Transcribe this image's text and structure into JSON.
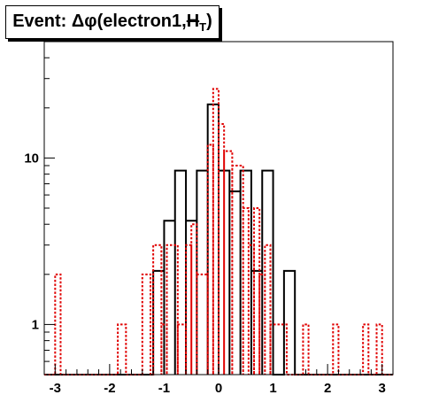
{
  "title": {
    "prefix": "Event: Δφ(electron1,",
    "met_symbol": "H",
    "met_subscript": "T",
    "suffix": ")"
  },
  "chart_data": {
    "type": "histogram",
    "title": "Event: Δφ(electron1,H_T)",
    "xlabel": "",
    "ylabel": "",
    "xlim": [
      -3.2,
      3.2
    ],
    "ylim": [
      0.5,
      50
    ],
    "log_y": true,
    "grid": false,
    "bin_width": 0.2,
    "x_ticks": [
      -3,
      -2,
      -1,
      0,
      1,
      2,
      3
    ],
    "x_tick_labels": [
      "-3",
      "-2",
      "-1",
      "0",
      "1",
      "2",
      "3"
    ],
    "y_ticks": [
      1,
      10
    ],
    "y_tick_labels": [
      "1",
      "10"
    ],
    "series": [
      {
        "style": "solid",
        "color": "#000000",
        "bins": [
          {
            "lo": -1.2,
            "hi": -1.0,
            "v": 2.1
          },
          {
            "lo": -1.0,
            "hi": -0.8,
            "v": 4.2
          },
          {
            "lo": -0.8,
            "hi": -0.6,
            "v": 8.4
          },
          {
            "lo": -0.6,
            "hi": -0.4,
            "v": 4.2
          },
          {
            "lo": -0.4,
            "hi": -0.2,
            "v": 8.4
          },
          {
            "lo": -0.2,
            "hi": 0.0,
            "v": 21
          },
          {
            "lo": 0.0,
            "hi": 0.2,
            "v": 8.4
          },
          {
            "lo": 0.2,
            "hi": 0.4,
            "v": 6.3
          },
          {
            "lo": 0.4,
            "hi": 0.6,
            "v": 8.4
          },
          {
            "lo": 0.6,
            "hi": 0.8,
            "v": 2.1
          },
          {
            "lo": 0.8,
            "hi": 1.0,
            "v": 8.4
          },
          {
            "lo": 1.2,
            "hi": 1.4,
            "v": 2.1
          }
        ]
      },
      {
        "style": "dotted",
        "color": "#e00000",
        "bins": [
          {
            "lo": -3.0,
            "hi": -2.9,
            "v": 2.0
          },
          {
            "lo": -1.85,
            "hi": -1.7,
            "v": 1.0
          },
          {
            "lo": -1.4,
            "hi": -1.25,
            "v": 2.0
          },
          {
            "lo": -1.2,
            "hi": -1.05,
            "v": 3.0
          },
          {
            "lo": -1.05,
            "hi": -0.95,
            "v": 1.0
          },
          {
            "lo": -0.95,
            "hi": -0.75,
            "v": 3.0
          },
          {
            "lo": -0.75,
            "hi": -0.6,
            "v": 1.0
          },
          {
            "lo": -0.6,
            "hi": -0.5,
            "v": 3.0
          },
          {
            "lo": -0.5,
            "hi": -0.4,
            "v": 4.0
          },
          {
            "lo": -0.4,
            "hi": -0.2,
            "v": 2.0
          },
          {
            "lo": -0.2,
            "hi": -0.1,
            "v": 12.0
          },
          {
            "lo": -0.1,
            "hi": 0.0,
            "v": 26.0
          },
          {
            "lo": 0.0,
            "hi": 0.1,
            "v": 16.0
          },
          {
            "lo": 0.1,
            "hi": 0.25,
            "v": 11.0
          },
          {
            "lo": 0.25,
            "hi": 0.45,
            "v": 9.0
          },
          {
            "lo": 0.45,
            "hi": 0.55,
            "v": 5.0
          },
          {
            "lo": 0.55,
            "hi": 0.65,
            "v": 3.0
          },
          {
            "lo": 0.65,
            "hi": 0.75,
            "v": 5.0
          },
          {
            "lo": 0.75,
            "hi": 0.85,
            "v": 2.0
          },
          {
            "lo": 0.85,
            "hi": 0.95,
            "v": 3.0
          },
          {
            "lo": 0.95,
            "hi": 1.25,
            "v": 1.0
          },
          {
            "lo": 1.55,
            "hi": 1.65,
            "v": 1.0
          },
          {
            "lo": 2.1,
            "hi": 2.2,
            "v": 1.0
          },
          {
            "lo": 2.65,
            "hi": 2.75,
            "v": 1.0
          },
          {
            "lo": 2.9,
            "hi": 3.0,
            "v": 1.0
          }
        ]
      }
    ]
  }
}
